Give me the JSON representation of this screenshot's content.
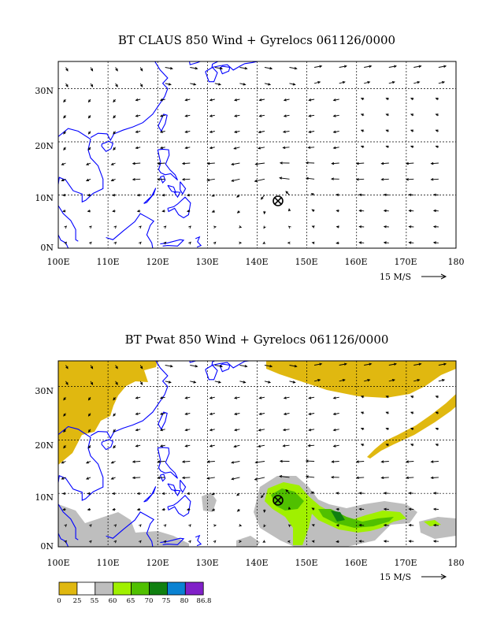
{
  "panels": [
    {
      "id": "top",
      "title": "BT CLAUS 850 Wind + Gyrelocs 061126/0000",
      "lat_labels": [
        "0N",
        "10N",
        "20N",
        "30N"
      ],
      "lon_labels": [
        "100E",
        "110E",
        "120E",
        "130E",
        "140E",
        "150E",
        "160E",
        "170E",
        "180"
      ],
      "vector_ref": "15 M/S",
      "gyre": {
        "lon": 144,
        "lat": 9.5
      }
    },
    {
      "id": "bottom",
      "title": "BT Pwat 850 Wind + Gyrelocs 061126/0000",
      "lat_labels": [
        "0N",
        "10N",
        "20N",
        "30N"
      ],
      "lon_labels": [
        "100E",
        "110E",
        "120E",
        "130E",
        "140E",
        "150E",
        "160E",
        "170E",
        "180"
      ],
      "vector_ref": "15 M/S",
      "gyre": {
        "lon": 144,
        "lat": 9.5
      }
    }
  ],
  "legend": {
    "labels": [
      "0",
      "25",
      "55",
      "60",
      "65",
      "70",
      "75",
      "80",
      "86.8"
    ],
    "colors": [
      "#e0b810",
      "#ffffff",
      "#bebebe",
      "#a0f000",
      "#50c000",
      "#108010",
      "#0a82d2",
      "#8020c8"
    ]
  },
  "colors": {
    "coast": "#0000ff",
    "yellow": "#e0b810",
    "gray": "#bebebe",
    "lightgreen": "#a0f000",
    "green": "#50c000",
    "darkgreen": "#108010"
  }
}
